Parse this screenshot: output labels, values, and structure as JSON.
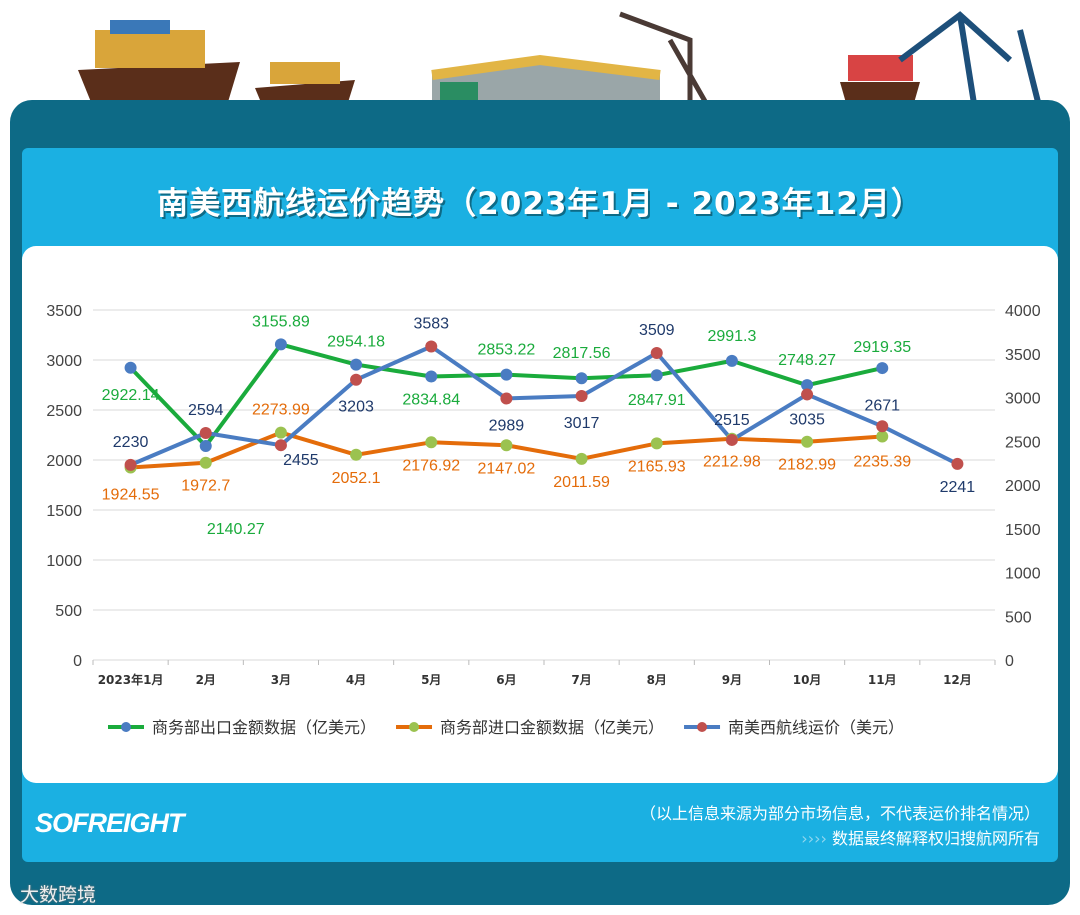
{
  "title": "南美西航线运价趋势（2023年1月 - 2023年12月）",
  "chart_data": {
    "type": "line",
    "categories": [
      "2023年1月",
      "2月",
      "3月",
      "4月",
      "5月",
      "6月",
      "7月",
      "8月",
      "9月",
      "10月",
      "11月",
      "12月"
    ],
    "y_left": {
      "range": [
        0,
        3500
      ],
      "ticks": [
        "0",
        "500",
        "1000",
        "1500",
        "2000",
        "2500",
        "3000",
        "3500"
      ]
    },
    "y_right": {
      "range": [
        0,
        4000
      ],
      "ticks": [
        "0",
        "500",
        "1000",
        "1500",
        "2000",
        "2500",
        "3000",
        "3500",
        "4000"
      ]
    },
    "grid": true,
    "legend_position": "bottom",
    "series": [
      {
        "name": "商务部出口金额数据（亿美元）",
        "axis": "left",
        "line_color": "#1aab3c",
        "marker_color": "#4a7cc2",
        "label_color": "#1aab3c",
        "values": [
          2922.14,
          2140.27,
          3155.89,
          2954.18,
          2834.84,
          2853.22,
          2817.56,
          2847.91,
          2991.3,
          2748.27,
          2919.35,
          null
        ],
        "labels": [
          "2922.14",
          "2140.27",
          "3155.89",
          "2954.18",
          "2834.84",
          "2853.22",
          "2817.56",
          "2847.91",
          "2991.3",
          "2748.27",
          "2919.35",
          ""
        ]
      },
      {
        "name": "商务部进口金额数据（亿美元）",
        "axis": "left",
        "line_color": "#e46c0a",
        "marker_color": "#9bc250",
        "label_color": "#e46c0a",
        "values": [
          1924.55,
          1972.7,
          2273.99,
          2052.1,
          2176.92,
          2147.02,
          2011.59,
          2165.93,
          2212.98,
          2182.99,
          2235.39,
          null
        ],
        "labels": [
          "1924.55",
          "1972.7",
          "2273.99",
          "2052.1",
          "2176.92",
          "2147.02",
          "2011.59",
          "2165.93",
          "2212.98",
          "2182.99",
          "2235.39",
          ""
        ]
      },
      {
        "name": "南美西航线运价（美元）",
        "axis": "right",
        "line_color": "#4a7cc2",
        "marker_color": "#c0504d",
        "label_color": "#1f3a6b",
        "values": [
          2230,
          2594,
          2455,
          3203,
          3583,
          2989,
          3017,
          3509,
          2515,
          3035,
          2671,
          2241
        ],
        "labels": [
          "2230",
          "2594",
          "2455",
          "3203",
          "3583",
          "2989",
          "3017",
          "3509",
          "2515",
          "3035",
          "2671",
          "2241"
        ]
      }
    ]
  },
  "footer": {
    "logo": "SOFREIGHT",
    "disclaimer": "（以上信息来源为部分市场信息，不代表运价排名情况）",
    "rights": "数据最终解释权归搜航网所有",
    "rights_prefix": "›››› ",
    "watermark": "大数跨境"
  },
  "colors": {
    "frame": "#0d6a86",
    "panel": "#1bb0e2"
  }
}
